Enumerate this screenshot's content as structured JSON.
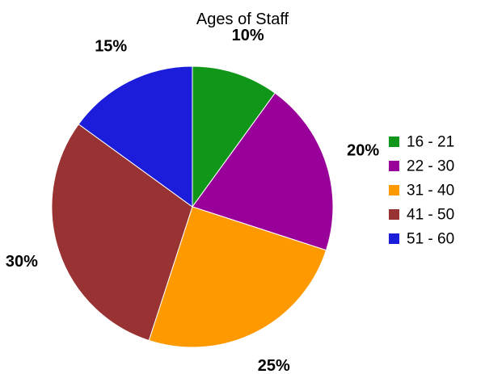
{
  "chart_data": {
    "type": "pie",
    "title": "Ages of Staff",
    "categories": [
      "16 - 21",
      "22 - 30",
      "31 - 40",
      "41 - 50",
      "51 - 60"
    ],
    "values": [
      10,
      20,
      25,
      30,
      15
    ],
    "value_labels": [
      "10%",
      "20%",
      "25%",
      "30%",
      "15%"
    ],
    "colors": [
      "#109618",
      "#990099",
      "#ff9900",
      "#993333",
      "#1c1cdb"
    ],
    "start_angle_deg": 0,
    "direction": "clockwise",
    "legend_position": "right"
  }
}
